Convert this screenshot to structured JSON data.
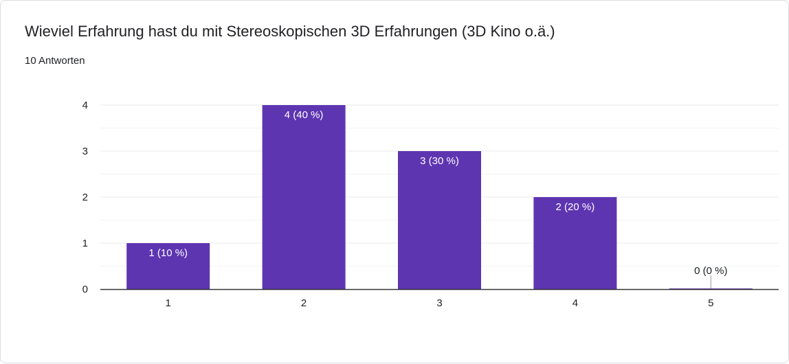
{
  "header": {
    "title": "Wieviel Erfahrung hast du mit Stereoskopischen 3D Erfahrungen (3D Kino o.ä.)",
    "response_count": "10 Antworten"
  },
  "colors": {
    "bar": "#5e35b1",
    "grid": "#e8eaed",
    "axis": "#333333",
    "label_inside": "#ffffff",
    "label_outside": "#202124"
  },
  "chart_data": {
    "type": "bar",
    "categories": [
      "1",
      "2",
      "3",
      "4",
      "5"
    ],
    "values": [
      1,
      4,
      3,
      2,
      0
    ],
    "data_labels": [
      "1 (10 %)",
      "4 (40 %)",
      "3 (30 %)",
      "2 (20 %)",
      "0 (0 %)"
    ],
    "y_ticks": [
      0,
      1,
      2,
      3,
      4
    ],
    "ylim": [
      0,
      4
    ],
    "grid": true,
    "legend": "none"
  }
}
